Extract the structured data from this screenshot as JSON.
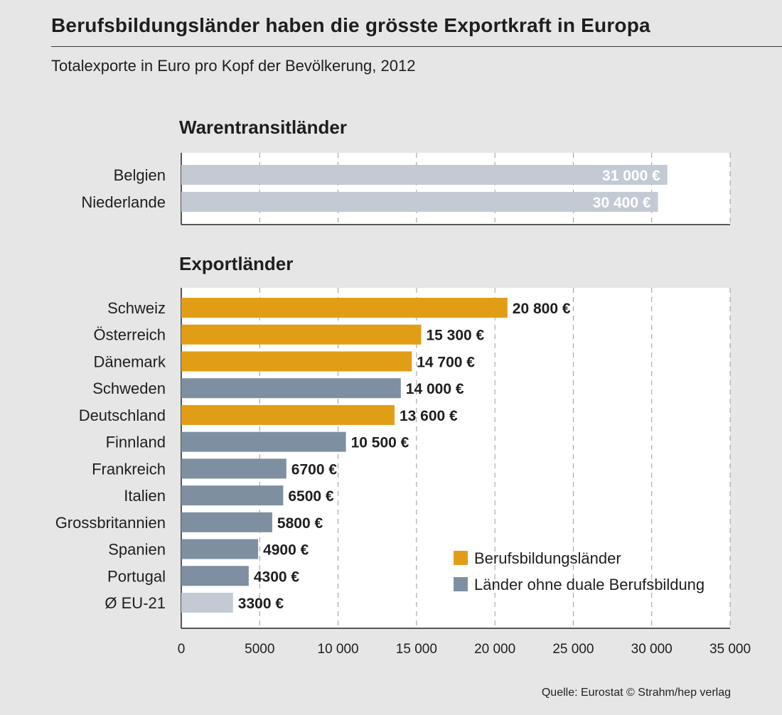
{
  "title": "Berufsbildungsländer haben die grösste Exportkraft in Europa",
  "subtitle": "Totalexporte in Euro pro Kopf der Bevölkerung, 2012",
  "source": "Quelle: Eurostat  © Strahm/hep verlag",
  "colors": {
    "dual": "#e29d17",
    "non_dual": "#7e8fa1",
    "transit": "#c3cad3",
    "average": "#c3cad3",
    "grid": "#9a9a9a",
    "panel": "#ffffff"
  },
  "chart_data": {
    "type": "bar",
    "orientation": "horizontal",
    "xlim": [
      0,
      35000
    ],
    "x_ticks": [
      "0",
      "5000",
      "10 000",
      "15 000",
      "20 000",
      "25 000",
      "30 000",
      "35 000"
    ],
    "x_tick_values": [
      0,
      5000,
      10000,
      15000,
      20000,
      25000,
      30000,
      35000
    ],
    "grid": "vertical dashed",
    "legend_position": "bottom-right",
    "legend": [
      {
        "label": "Berufsbildungsländer",
        "color_key": "dual"
      },
      {
        "label": "Länder ohne duale Berufsbildung",
        "color_key": "non_dual"
      }
    ],
    "panels": [
      {
        "heading": "Warentransitländer",
        "bars": [
          {
            "label": "Belgien",
            "value": 31000,
            "value_label": "31 000 €",
            "group": "transit"
          },
          {
            "label": "Niederlande",
            "value": 30400,
            "value_label": "30 400 €",
            "group": "transit"
          }
        ]
      },
      {
        "heading": "Exportländer",
        "bars": [
          {
            "label": "Schweiz",
            "value": 20800,
            "value_label": "20 800 €",
            "group": "dual"
          },
          {
            "label": "Österreich",
            "value": 15300,
            "value_label": "15 300 €",
            "group": "dual"
          },
          {
            "label": "Dänemark",
            "value": 14700,
            "value_label": "14 700 €",
            "group": "dual"
          },
          {
            "label": "Schweden",
            "value": 14000,
            "value_label": "14 000 €",
            "group": "non_dual"
          },
          {
            "label": "Deutschland",
            "value": 13600,
            "value_label": "13 600 €",
            "group": "dual"
          },
          {
            "label": "Finnland",
            "value": 10500,
            "value_label": "10 500 €",
            "group": "non_dual"
          },
          {
            "label": "Frankreich",
            "value": 6700,
            "value_label": "6700 €",
            "group": "non_dual"
          },
          {
            "label": "Italien",
            "value": 6500,
            "value_label": "6500 €",
            "group": "non_dual"
          },
          {
            "label": "Grossbritannien",
            "value": 5800,
            "value_label": "5800 €",
            "group": "non_dual"
          },
          {
            "label": "Spanien",
            "value": 4900,
            "value_label": "4900 €",
            "group": "non_dual"
          },
          {
            "label": "Portugal",
            "value": 4300,
            "value_label": "4300 €",
            "group": "non_dual"
          },
          {
            "label": "Ø EU-21",
            "value": 3300,
            "value_label": "3300 €",
            "group": "average"
          }
        ]
      }
    ]
  }
}
